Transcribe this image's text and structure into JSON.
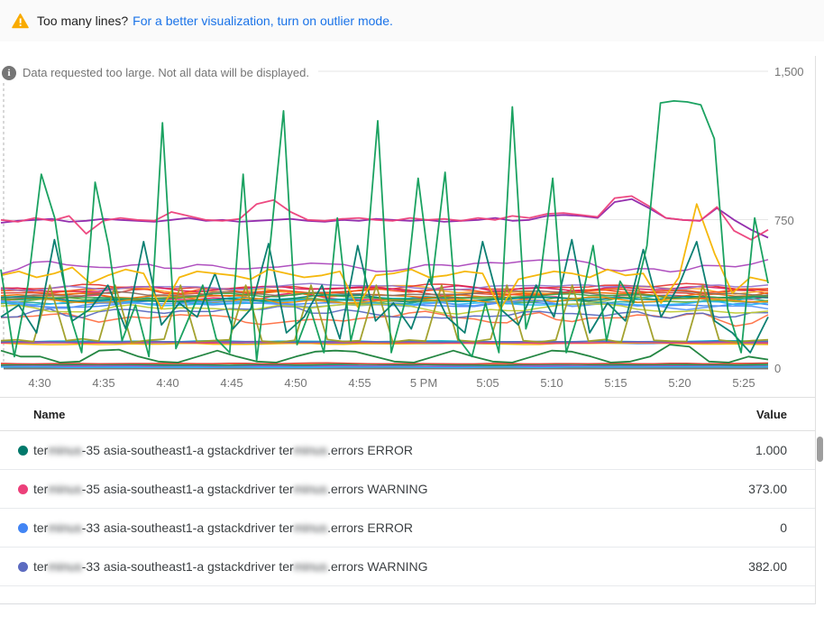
{
  "banner": {
    "warning_text": "Too many lines?",
    "link_label": "For a better visualization, turn on outlier mode.",
    "warning_color": "#F9AB00",
    "link_color": "#1a73e8"
  },
  "notice": {
    "text": "Data requested too large. Not all data will be displayed."
  },
  "chart_data": {
    "type": "line",
    "title": "",
    "xlabel": "",
    "ylabel": "",
    "ylim": [
      0,
      1500
    ],
    "y_ticks": [
      "1,500",
      "750",
      "0"
    ],
    "x_ticks": [
      "4:30",
      "4:35",
      "4:40",
      "4:45",
      "4:50",
      "4:55",
      "5 PM",
      "5:05",
      "5:10",
      "5:15",
      "5:20",
      "5:25"
    ],
    "grid": "horizontal",
    "legend_position": "table-below",
    "series": [
      {
        "color": "#AB47BC",
        "base": 520,
        "amp": 45,
        "seed": 7
      },
      {
        "color": "#FF7043",
        "base": 255,
        "amp": 55,
        "seed": 11
      },
      {
        "color": "#5C6BC0",
        "base": 285,
        "amp": 50,
        "seed": 12
      },
      {
        "color": "#4285F4",
        "base": 330,
        "amp": 22,
        "seed": 13
      },
      {
        "color": "#DB4437",
        "base": 385,
        "amp": 30,
        "seed": 14
      },
      {
        "color": "#E91E63",
        "base": 360,
        "amp": 25,
        "seed": 15
      },
      {
        "color": "#00ACC1",
        "base": 350,
        "amp": 28,
        "seed": 16
      },
      {
        "color": "#26A69A",
        "base": 340,
        "amp": 25,
        "seed": 17
      },
      {
        "color": "#EF6C00",
        "base": 370,
        "amp": 30,
        "seed": 18
      },
      {
        "color": "#7CB342",
        "base": 345,
        "amp": 25,
        "seed": 19
      },
      {
        "color": "#FFA726",
        "base": 395,
        "amp": 28,
        "seed": 20
      },
      {
        "color": "#E53935",
        "base": 410,
        "amp": 25,
        "seed": 21
      },
      {
        "color": "#29B6F6",
        "base": 335,
        "amp": 22,
        "seed": 22
      },
      {
        "color": "#8D6E63",
        "base": 375,
        "amp": 22,
        "seed": 23
      },
      {
        "color": "#D81B60",
        "base": 400,
        "amp": 24,
        "seed": 24
      },
      {
        "color": "#00897B",
        "base": 352,
        "amp": 24,
        "seed": 25
      },
      {
        "color": "#F4511E",
        "base": 388,
        "amp": 26,
        "seed": 26
      },
      {
        "color": "#9575CD",
        "base": 415,
        "amp": 26,
        "seed": 27
      },
      {
        "color": "#FB8C00",
        "base": 342,
        "amp": 26,
        "seed": 28
      },
      {
        "color": "#43A047",
        "base": 365,
        "amp": 24,
        "seed": 29
      },
      {
        "color": "#5E97F6",
        "base": 320,
        "amp": 30,
        "seed": 30
      },
      {
        "color": "#C0CA33",
        "base": 300,
        "amp": 35,
        "seed": 31
      },
      {
        "color": "#4285F4",
        "base": 128,
        "amp": 6,
        "seed": 41
      },
      {
        "color": "#DB4437",
        "base": 133,
        "amp": 5,
        "seed": 42
      },
      {
        "color": "#F4B400",
        "base": 124,
        "amp": 6,
        "seed": 43
      },
      {
        "color": "#00ACC1",
        "base": 137,
        "amp": 5,
        "seed": 44
      },
      {
        "color": "#EC407A",
        "base": 130,
        "amp": 4,
        "seed": 45
      },
      {
        "color": "#5C6BC0",
        "base": 135,
        "amp": 4,
        "seed": 46
      },
      {
        "color": "#4285F4",
        "base": 10,
        "amp": 3,
        "seed": 51
      },
      {
        "color": "#26A69A",
        "base": 16,
        "amp": 4,
        "seed": 52
      },
      {
        "color": "#FF7043",
        "base": 22,
        "amp": 4,
        "seed": 53
      },
      {
        "color": "#AB47BC",
        "base": 13,
        "amp": 3,
        "seed": 54
      },
      {
        "color": "#29B6F6",
        "base": 7,
        "amp": 3,
        "seed": 55
      },
      {
        "color": "#0F9D58",
        "base": 19,
        "amp": 4,
        "seed": 56
      },
      {
        "color": "#DB4437",
        "base": 25,
        "amp": 4,
        "seed": 57
      },
      {
        "color": "#9E9D24",
        "values": [
          140,
          145,
          135,
          420,
          140,
          150,
          138,
          420,
          132,
          142,
          148,
          420,
          136,
          140,
          145,
          420,
          138,
          132,
          142,
          420,
          146,
          136,
          140,
          420,
          134,
          144,
          138,
          420,
          142,
          136,
          148,
          420,
          140,
          134,
          144,
          420,
          138,
          146,
          132,
          420,
          142,
          138,
          136,
          420,
          144,
          134,
          140,
          145
        ]
      },
      {
        "color": "#188038",
        "values": [
          90,
          60,
          60,
          30,
          35,
          90,
          95,
          60,
          35,
          30,
          60,
          90,
          60,
          35,
          30,
          60,
          85,
          90,
          85,
          60,
          35,
          30,
          60,
          90,
          60,
          35,
          30,
          60,
          90,
          85,
          60,
          30,
          35,
          60,
          120,
          110,
          35,
          30,
          60,
          45
        ]
      },
      {
        "color": "#00796B",
        "values": [
          260,
          320,
          180,
          650,
          240,
          300,
          420,
          200,
          640,
          220,
          330,
          260,
          480,
          200,
          300,
          630,
          180,
          260,
          420,
          150,
          620,
          240,
          330,
          200,
          450,
          260,
          180,
          640,
          300,
          220,
          420,
          260,
          650,
          180,
          330,
          240,
          600,
          260,
          420,
          640,
          240,
          180,
          80,
          260
        ]
      },
      {
        "color": "#F4B400",
        "values": [
          470,
          490,
          460,
          480,
          510,
          430,
          470,
          500,
          480,
          300,
          460,
          490,
          480,
          470,
          450,
          500,
          480,
          460,
          470,
          490,
          310,
          470,
          480,
          500,
          460,
          470,
          490,
          480,
          300,
          450,
          470,
          490,
          480,
          460,
          500,
          470,
          480,
          330,
          460,
          830,
          580,
          380,
          460,
          440
        ]
      },
      {
        "color": "#8E24AA",
        "values": [
          735,
          745,
          750,
          755,
          740,
          745,
          755,
          750,
          745,
          740,
          750,
          760,
          745,
          750,
          740,
          745,
          750,
          755,
          745,
          740,
          750,
          745,
          755,
          750,
          745,
          750,
          740,
          745,
          750,
          760,
          745,
          750,
          770,
          775,
          770,
          760,
          840,
          855,
          810,
          760,
          750,
          745,
          810,
          750,
          700,
          660
        ]
      },
      {
        "color": "#EC407A",
        "values": [
          750,
          740,
          760,
          745,
          770,
          680,
          745,
          760,
          750,
          745,
          790,
          770,
          750,
          745,
          755,
          830,
          850,
          790,
          750,
          745,
          755,
          760,
          750,
          745,
          760,
          750,
          755,
          745,
          760,
          750,
          770,
          760,
          780,
          785,
          775,
          765,
          860,
          870,
          820,
          760,
          750,
          745,
          815,
          695,
          650,
          700
        ]
      },
      {
        "color": "#0F9D58",
        "values": [
          500,
          60,
          420,
          980,
          760,
          300,
          80,
          940,
          620,
          140,
          320,
          60,
          1240,
          100,
          260,
          420,
          150,
          80,
          980,
          40,
          620,
          1300,
          120,
          300,
          80,
          760,
          140,
          420,
          1250,
          80,
          330,
          960,
          420,
          990,
          150,
          60,
          330,
          80,
          1320,
          200,
          420,
          960,
          80,
          300,
          620,
          140,
          440,
          330,
          620,
          1340,
          1350,
          1345,
          1330,
          1160,
          300,
          80,
          760,
          430
        ]
      }
    ]
  },
  "legend": {
    "name_header": "Name",
    "value_header": "Value",
    "rows": [
      {
        "color": "#00796B",
        "pre": "ter",
        "blur1": "minus",
        "mid": "-35 asia-southeast1-a gstackdriver ter",
        "blur2": "minus",
        "post": ".errors ERROR",
        "value": "1.000"
      },
      {
        "color": "#EC407A",
        "pre": "ter",
        "blur1": "minus",
        "mid": "-35 asia-southeast1-a gstackdriver ter",
        "blur2": "minus",
        "post": ".errors WARNING",
        "value": "373.00"
      },
      {
        "color": "#4285F4",
        "pre": "ter",
        "blur1": "minus",
        "mid": "-33 asia-southeast1-a gstackdriver ter",
        "blur2": "minus",
        "post": ".errors ERROR",
        "value": "0"
      },
      {
        "color": "#5C6BC0",
        "pre": "ter",
        "blur1": "minus",
        "mid": "-33 asia-southeast1-a gstackdriver ter",
        "blur2": "minus",
        "post": ".errors WARNING",
        "value": "382.00"
      }
    ]
  }
}
